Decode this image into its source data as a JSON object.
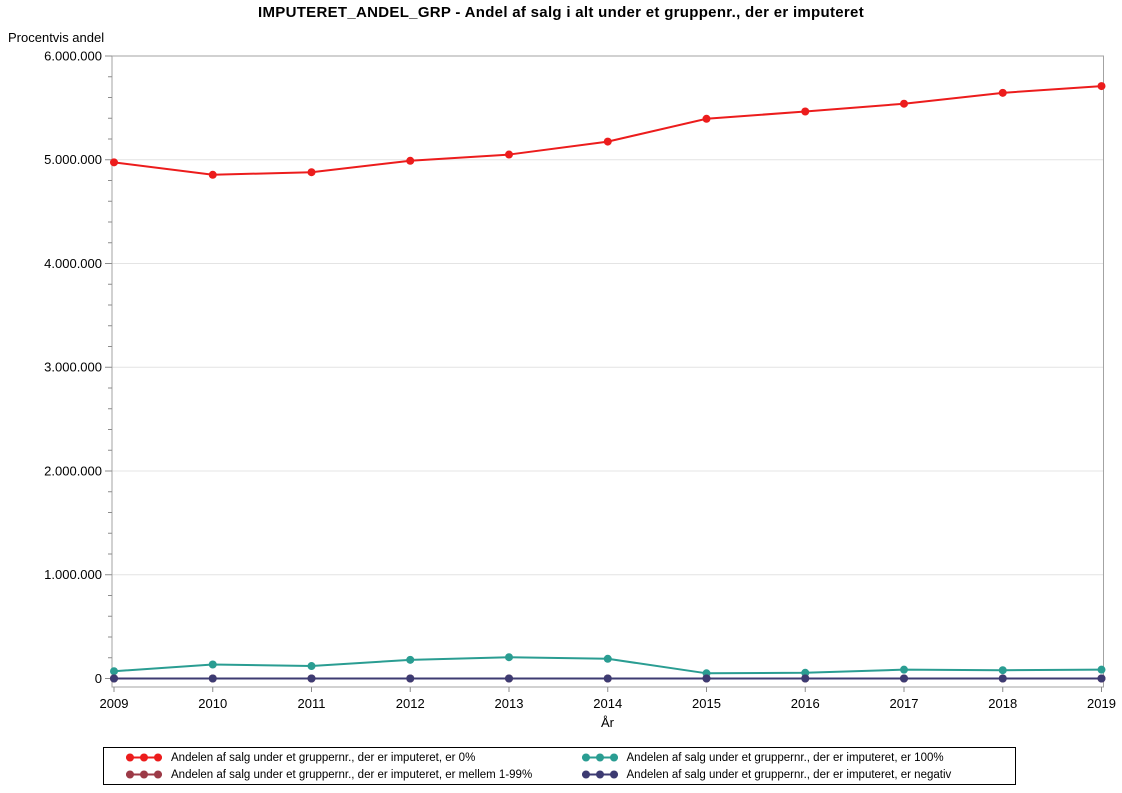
{
  "chart_data": {
    "type": "line",
    "title": "IMPUTERET_ANDEL_GRP - Andel af salg i alt under et gruppenr., der er imputeret",
    "xlabel": "År",
    "ylabel": "Procentvis andel",
    "x": [
      2009,
      2010,
      2011,
      2012,
      2013,
      2014,
      2015,
      2016,
      2017,
      2018,
      2019
    ],
    "xtick_labels": [
      "2009",
      "2010",
      "2011",
      "2012",
      "2013",
      "2014",
      "2015",
      "2016",
      "2017",
      "2018",
      "2019"
    ],
    "ytick_values": [
      0,
      1000000,
      2000000,
      3000000,
      4000000,
      5000000,
      6000000
    ],
    "ytick_labels": [
      "0",
      "1.000.000",
      "2.000.000",
      "3.000.000",
      "4.000.000",
      "5.000.000",
      "6.000.000"
    ],
    "ylim": [
      -82000,
      6000000
    ],
    "y_minor_step": 200000,
    "grid": "horizontal",
    "legend_position": "bottom",
    "colors": {
      "grid": "#E4E4E4",
      "frame": "#A3A3A3",
      "tick": "#8C8C8C"
    },
    "series": [
      {
        "name": "Andelen af salg under et gruppernr., der er imputeret, er 0%",
        "color": "#EC1C1C",
        "values": [
          4975000,
          4855000,
          4880000,
          4990000,
          5050000,
          5175000,
          5395000,
          5465000,
          5540000,
          5645000,
          5710000
        ]
      },
      {
        "name": "Andelen af salg under et gruppernr., der er imputeret, er 100%",
        "color": "#2A9D92",
        "values": [
          70000,
          135000,
          120000,
          180000,
          205000,
          190000,
          50000,
          55000,
          85000,
          80000,
          85000
        ]
      },
      {
        "name": "Andelen af salg under et gruppernr., der er imputeret, er mellem 1-99%",
        "color": "#9C3A47",
        "values": [
          0,
          0,
          0,
          0,
          0,
          0,
          0,
          0,
          0,
          0,
          0
        ]
      },
      {
        "name": "Andelen af salg under et gruppernr., der er imputeret, er negativ",
        "color": "#3D3B72",
        "values": [
          0,
          0,
          0,
          0,
          0,
          0,
          0,
          0,
          0,
          0,
          0
        ]
      }
    ]
  }
}
